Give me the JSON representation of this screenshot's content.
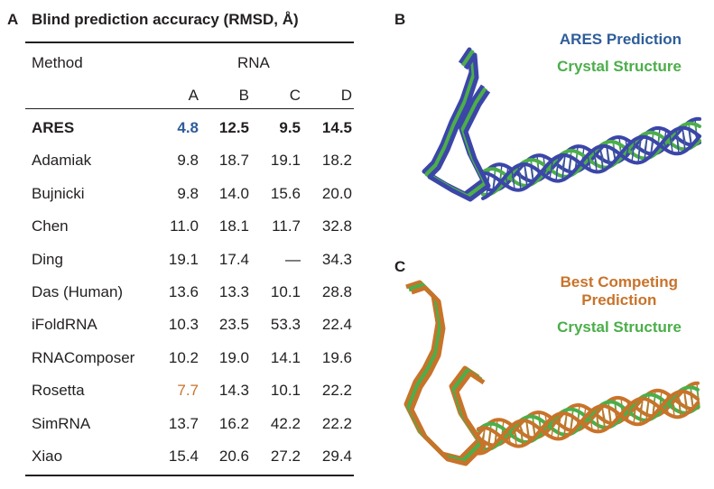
{
  "colors": {
    "ares_blue": "#2e5d9a",
    "ares_navy": "#3b46a8",
    "crystal_green": "#4cae4a",
    "competing_orange": "#c8732a",
    "text": "#231f20"
  },
  "panel_a": {
    "label": "A",
    "title": "Blind prediction accuracy (RMSD, Å)",
    "method_header": "Method",
    "rna_header": "RNA",
    "columns": [
      "A",
      "B",
      "C",
      "D"
    ],
    "rows": [
      {
        "method": "ARES",
        "values": [
          "4.8",
          "12.5",
          "9.5",
          "14.5"
        ],
        "bold": true,
        "highlight_col": 0,
        "highlight_color": "#2e5d9a"
      },
      {
        "method": "Adamiak",
        "values": [
          "9.8",
          "18.7",
          "19.1",
          "18.2"
        ]
      },
      {
        "method": "Bujnicki",
        "values": [
          "9.8",
          "14.0",
          "15.6",
          "20.0"
        ]
      },
      {
        "method": "Chen",
        "values": [
          "11.0",
          "18.1",
          "11.7",
          "32.8"
        ]
      },
      {
        "method": "Ding",
        "values": [
          "19.1",
          "17.4",
          "—",
          "34.3"
        ]
      },
      {
        "method": "Das (Human)",
        "values": [
          "13.6",
          "13.3",
          "10.1",
          "28.8"
        ]
      },
      {
        "method": "iFoldRNA",
        "values": [
          "10.3",
          "23.5",
          "53.3",
          "22.4"
        ]
      },
      {
        "method": "RNAComposer",
        "values": [
          "10.2",
          "19.0",
          "14.1",
          "19.6"
        ]
      },
      {
        "method": "Rosetta",
        "values": [
          "7.7",
          "14.3",
          "10.1",
          "22.2"
        ],
        "highlight_col": 0,
        "highlight_color": "#c8732a"
      },
      {
        "method": "SimRNA",
        "values": [
          "13.7",
          "16.2",
          "42.2",
          "22.2"
        ]
      },
      {
        "method": "Xiao",
        "values": [
          "15.4",
          "20.6",
          "27.2",
          "29.4"
        ]
      }
    ]
  },
  "panel_b": {
    "label": "B",
    "legend_prediction": "ARES Prediction",
    "legend_crystal": "Crystal Structure"
  },
  "panel_c": {
    "label": "C",
    "legend_prediction_line1": "Best Competing",
    "legend_prediction_line2": "Prediction",
    "legend_crystal": "Crystal Structure"
  }
}
